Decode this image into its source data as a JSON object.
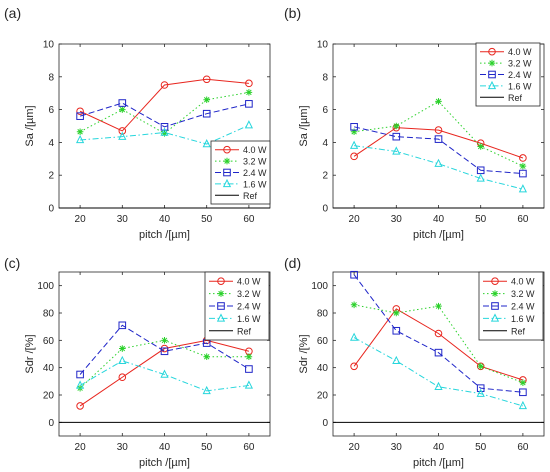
{
  "chart_data": [
    {
      "type": "line",
      "panel_label": "(a)",
      "xlabel": "pitch /[µm]",
      "ylabel": "Sa /[µm]",
      "x": [
        20,
        30,
        40,
        50,
        60
      ],
      "xlim": [
        15,
        65
      ],
      "ylim": [
        0,
        10
      ],
      "yticks": [
        0,
        2,
        4,
        6,
        8,
        10
      ],
      "legend_position": "lower-right",
      "series": [
        {
          "name": "4.0 W",
          "values": [
            5.9,
            4.7,
            7.5,
            7.85,
            7.6
          ]
        },
        {
          "name": "3.2 W",
          "values": [
            4.65,
            6.0,
            4.55,
            6.6,
            7.05
          ]
        },
        {
          "name": "2.4 W",
          "values": [
            5.6,
            6.4,
            4.95,
            5.75,
            6.35
          ]
        },
        {
          "name": "1.6 W",
          "values": [
            4.15,
            4.35,
            4.6,
            3.9,
            5.05
          ]
        },
        {
          "name": "Ref",
          "values": [
            0,
            0,
            0,
            0,
            0
          ]
        }
      ]
    },
    {
      "type": "line",
      "panel_label": "(b)",
      "xlabel": "pitch /[µm]",
      "ylabel": "Sa /[µm]",
      "x": [
        20,
        30,
        40,
        50,
        60
      ],
      "xlim": [
        15,
        65
      ],
      "ylim": [
        0,
        10
      ],
      "yticks": [
        0,
        2,
        4,
        6,
        8,
        10
      ],
      "legend_position": "upper-right",
      "series": [
        {
          "name": "4.0 W",
          "values": [
            3.15,
            4.9,
            4.75,
            3.95,
            3.05
          ]
        },
        {
          "name": "3.2 W",
          "values": [
            4.65,
            5.0,
            6.5,
            3.75,
            2.55
          ]
        },
        {
          "name": "2.4 W",
          "values": [
            4.95,
            4.35,
            4.2,
            2.3,
            2.1
          ]
        },
        {
          "name": "1.6 W",
          "values": [
            3.8,
            3.45,
            2.7,
            1.8,
            1.15
          ]
        },
        {
          "name": "Ref",
          "values": [
            0,
            0,
            0,
            0,
            0
          ]
        }
      ]
    },
    {
      "type": "line",
      "panel_label": "(c)",
      "xlabel": "pitch /[µm]",
      "ylabel": "Sdr /[%]",
      "x": [
        20,
        30,
        40,
        50,
        60
      ],
      "xlim": [
        15,
        65
      ],
      "ylim": [
        -10,
        110
      ],
      "yticks": [
        0,
        20,
        40,
        60,
        80,
        100
      ],
      "legend_position": "upper-right",
      "series": [
        {
          "name": "4.0 W",
          "values": [
            12,
            33,
            54,
            60,
            52
          ]
        },
        {
          "name": "3.2 W",
          "values": [
            25,
            54,
            60,
            48,
            48
          ]
        },
        {
          "name": "2.4 W",
          "values": [
            35,
            71,
            52,
            58,
            39
          ]
        },
        {
          "name": "1.6 W",
          "values": [
            27,
            45,
            35,
            23,
            27
          ]
        },
        {
          "name": "Ref",
          "values": [
            0,
            0,
            0,
            0,
            0
          ]
        }
      ]
    },
    {
      "type": "line",
      "panel_label": "(d)",
      "xlabel": "pitch /[µm]",
      "ylabel": "Sdr /[%]",
      "x": [
        20,
        30,
        40,
        50,
        60
      ],
      "xlim": [
        15,
        65
      ],
      "ylim": [
        -10,
        110
      ],
      "yticks": [
        0,
        20,
        40,
        60,
        80,
        100
      ],
      "legend_position": "upper-right",
      "series": [
        {
          "name": "4.0 W",
          "values": [
            41,
            83,
            65,
            41,
            31
          ]
        },
        {
          "name": "3.2 W",
          "values": [
            86,
            80,
            85,
            41,
            29
          ]
        },
        {
          "name": "2.4 W",
          "values": [
            108,
            67,
            51,
            25,
            22
          ]
        },
        {
          "name": "1.6 W",
          "values": [
            62,
            45,
            26,
            21,
            12
          ]
        },
        {
          "name": "Ref",
          "values": [
            0,
            0,
            0,
            0,
            0
          ]
        }
      ]
    }
  ],
  "style": {
    "series_colors": [
      "#e8261f",
      "#2bd12b",
      "#1f25c8",
      "#27d6dc",
      "#000000"
    ],
    "series_dashes": [
      "solid",
      "dotted",
      "dashed",
      "dash-dot",
      "solid"
    ],
    "series_markers": [
      "circle",
      "asterisk",
      "square",
      "triangle",
      "none"
    ]
  }
}
